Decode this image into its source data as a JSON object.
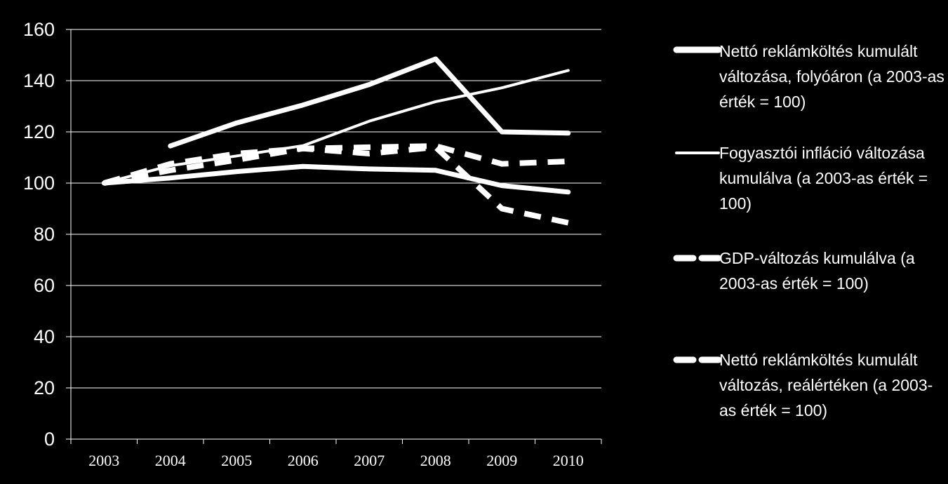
{
  "chart_data": {
    "type": "line",
    "categories": [
      "2003",
      "2004",
      "2005",
      "2006",
      "2007",
      "2008",
      "2009",
      "2010"
    ],
    "ylim": [
      0,
      160
    ],
    "yticks": [
      "0",
      "20",
      "40",
      "60",
      "80",
      "100",
      "120",
      "140",
      "160"
    ],
    "grid": true,
    "legend_position": "right",
    "title": "",
    "xlabel": "",
    "ylabel": "",
    "series": [
      {
        "name": "Nettó reklámköltés kumulált változása, folyóáron (a 2003-as érték = 100)",
        "style": "thick-solid",
        "values": [
          null,
          114.5,
          123.5,
          130.5,
          138.5,
          148.5,
          120,
          119.5
        ]
      },
      {
        "name": "Fogyasztói infláció változása kumulálva (a 2003-as érték = 100)",
        "style": "thin-solid",
        "values": [
          100,
          106.8,
          110.6,
          114.6,
          124.2,
          131.8,
          137.2,
          144
        ]
      },
      {
        "name": "GDP-változás kumulálva (a 2003-as érték = 100)",
        "style": "thick-dash",
        "values": [
          100,
          105,
          109,
          113.5,
          114,
          114.5,
          107.5,
          108.5
        ]
      },
      {
        "name": "Nettó reklámköltés kumulált változás, reálértéken (a 2003-as érték = 100)",
        "style": "thick-dash",
        "values": [
          100,
          107.5,
          111.5,
          113.5,
          111.5,
          114,
          90,
          84.5
        ]
      },
      {
        "name": "",
        "style": "thick-solid",
        "values": [
          100,
          102,
          104.5,
          106.5,
          105.5,
          105,
          99,
          96.5
        ]
      }
    ],
    "colors": {
      "line": "#ffffff",
      "background": "#000000",
      "grid": "#ffffff"
    }
  },
  "legend": [
    {
      "label": "Nettó reklámköltés kumulált változása, folyóáron (a 2003-as érték = 100)",
      "style": "thick-solid"
    },
    {
      "label": "Fogyasztói infláció változása kumulálva (a 2003-as érték = 100)",
      "style": "thin-solid"
    },
    {
      "label": "GDP-változás kumulálva (a 2003-as érték = 100)",
      "style": "thick-dash"
    },
    {
      "label": "Nettó reklámköltés kumulált változás, reálértéken (a 2003-as érték = 100)",
      "style": "thick-dash"
    }
  ]
}
